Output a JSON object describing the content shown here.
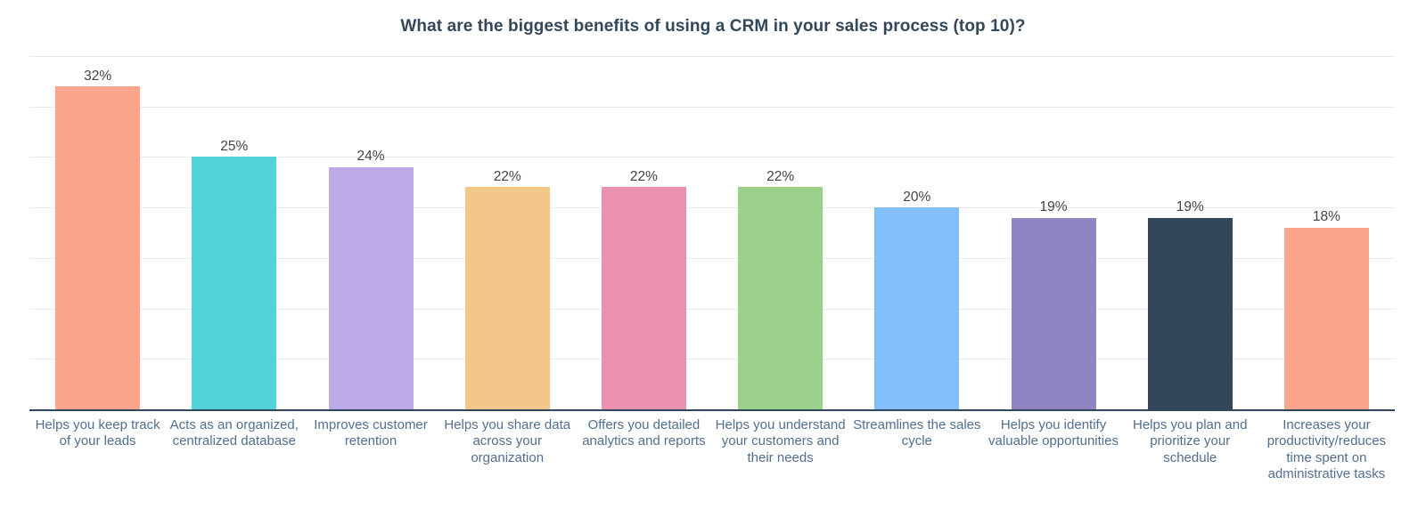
{
  "title": "What are the biggest benefits of using a CRM in your sales process (top 10)?",
  "colors": {
    "title_text": "#33475b",
    "axis_line": "#33475b",
    "gridline": "#e9edf1",
    "value_label_text": "#3e444a",
    "category_label_text": "#516f90",
    "background": "#ffffff"
  },
  "chart_data": {
    "type": "bar",
    "title": "What are the biggest benefits of using a CRM in your sales process (top 10)?",
    "categories": [
      "Helps you keep track of your leads",
      "Acts as an organized, centralized database",
      "Improves customer retention",
      "Helps you share data across your organization",
      "Offers you detailed analytics and reports",
      "Helps you understand your customers and their needs",
      "Streamlines the sales cycle",
      "Helps you identify valuable opportunities",
      "Helps you plan and prioritize your schedule",
      "Increases your productivity/reduces time spent on administrative tasks"
    ],
    "values": [
      32,
      25,
      24,
      22,
      22,
      22,
      20,
      19,
      19,
      18
    ],
    "value_labels": [
      "32%",
      "25%",
      "24%",
      "22%",
      "22%",
      "22%",
      "20%",
      "19%",
      "19%",
      "18%"
    ],
    "bar_colors": [
      "#fba58c",
      "#51d3d9",
      "#bba9e8",
      "#f3c789",
      "#ea90b0",
      "#9cd18b",
      "#81befa",
      "#9184c3",
      "#33475b",
      "#fba58c"
    ],
    "xlabel": "",
    "ylabel": "",
    "ylim": [
      0,
      35
    ],
    "gridline_interval": 5,
    "y_tick_labels_visible": false,
    "grid": "horizontal",
    "legend_position": "none"
  }
}
